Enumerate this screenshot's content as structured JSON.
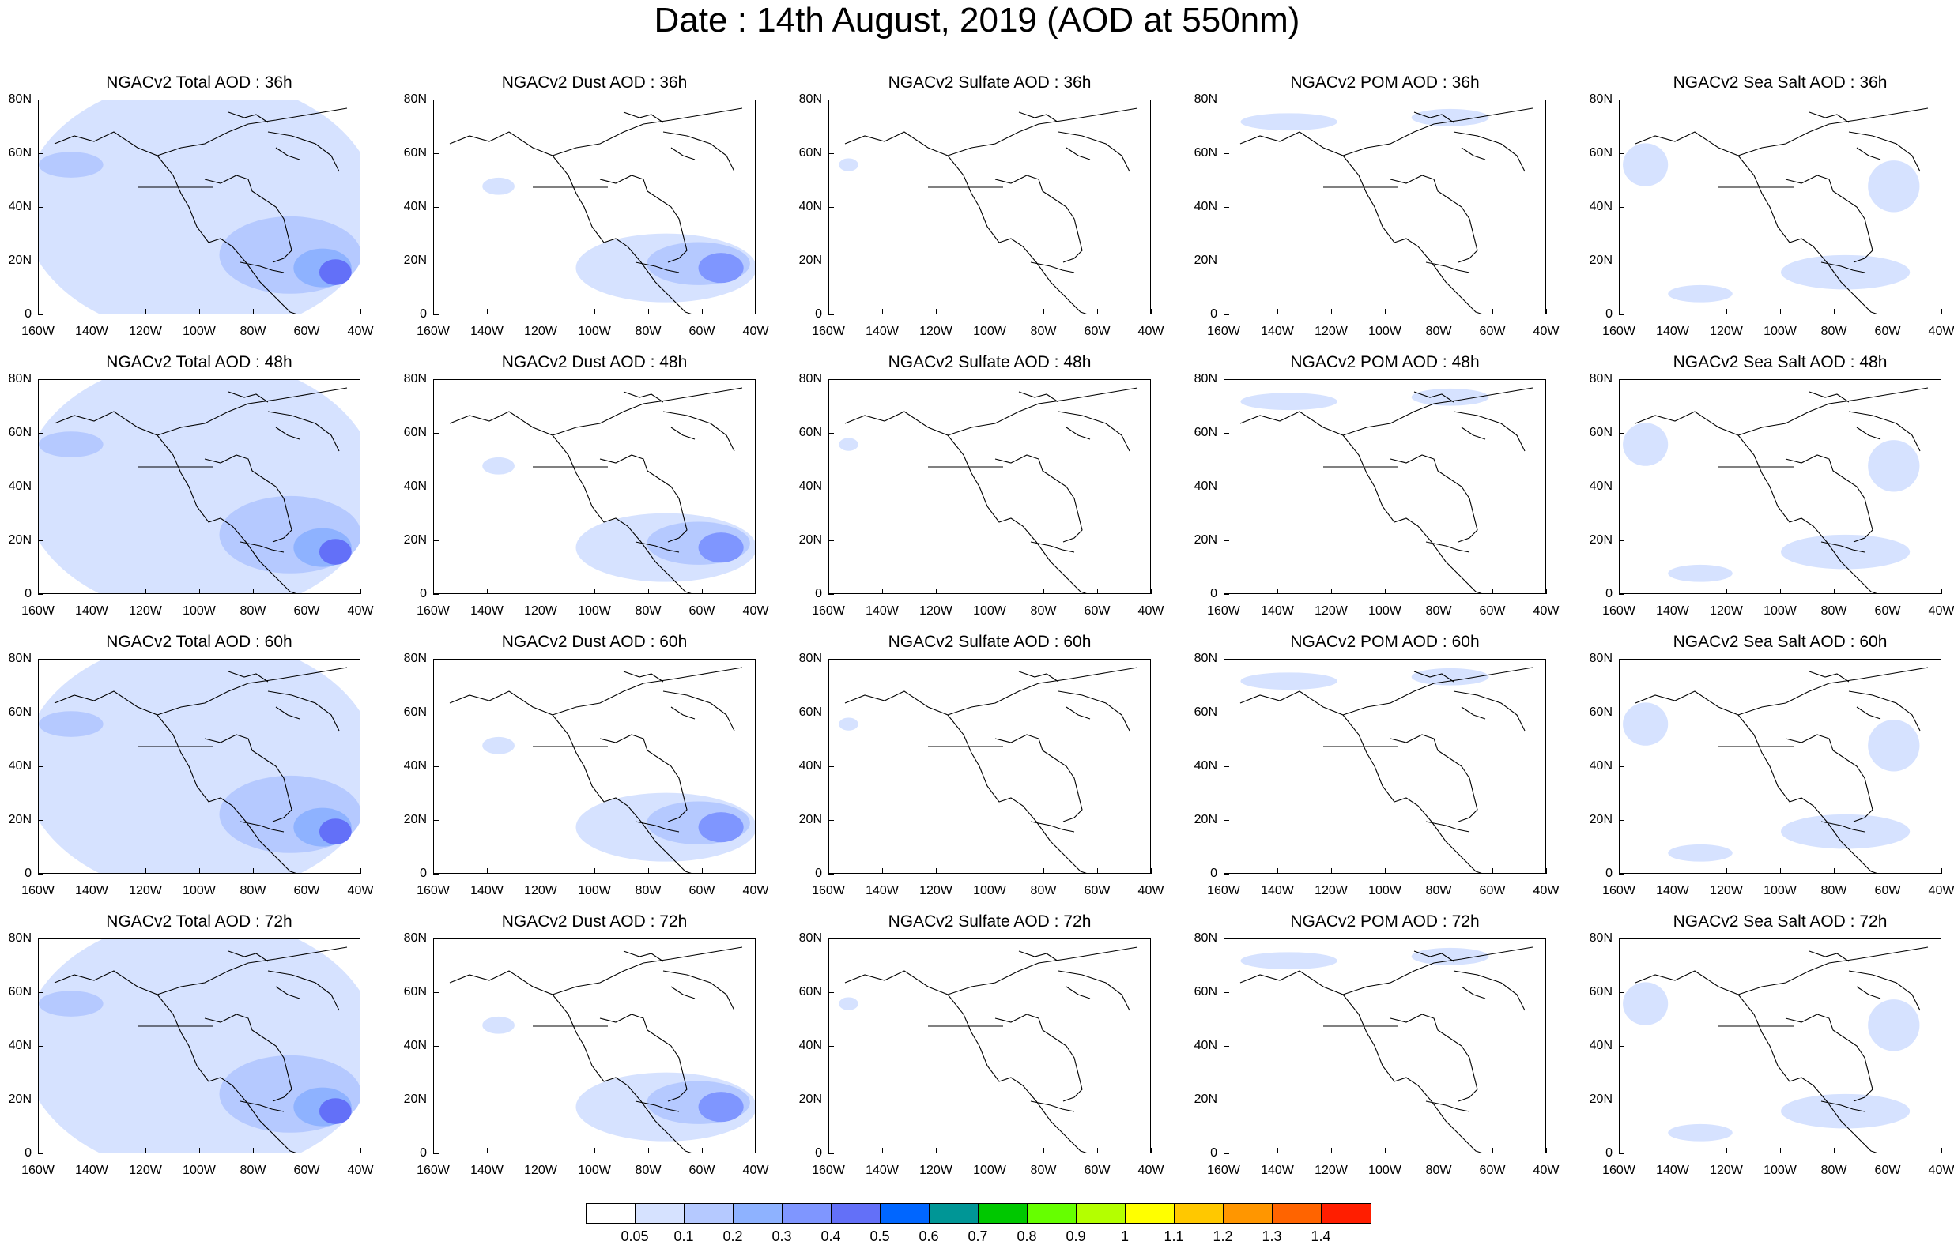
{
  "title": "Date : 14th August, 2019 (AOD at 550nm)",
  "y_axis_labels": [
    "80N",
    "60N",
    "40N",
    "20N",
    "0"
  ],
  "x_axis_labels": [
    "160W",
    "140W",
    "120W",
    "100W",
    "80W",
    "60W",
    "40W"
  ],
  "rows": [
    {
      "panels": [
        {
          "title": "NGACv2 Total AOD : 36h",
          "product": "total"
        },
        {
          "title": "NGACv2 Dust AOD : 36h",
          "product": "dust"
        },
        {
          "title": "NGACv2 Sulfate AOD : 36h",
          "product": "sulfate"
        },
        {
          "title": "NGACv2 POM AOD : 36h",
          "product": "pom"
        },
        {
          "title": "NGACv2 Sea Salt AOD : 36h",
          "product": "seasalt"
        }
      ]
    },
    {
      "panels": [
        {
          "title": "NGACv2 Total AOD : 48h",
          "product": "total"
        },
        {
          "title": "NGACv2 Dust AOD : 48h",
          "product": "dust"
        },
        {
          "title": "NGACv2 Sulfate AOD : 48h",
          "product": "sulfate"
        },
        {
          "title": "NGACv2 POM AOD : 48h",
          "product": "pom"
        },
        {
          "title": "NGACv2 Sea Salt AOD : 48h",
          "product": "seasalt"
        }
      ]
    },
    {
      "panels": [
        {
          "title": "NGACv2 Total AOD : 60h",
          "product": "total"
        },
        {
          "title": "NGACv2 Dust AOD : 60h",
          "product": "dust"
        },
        {
          "title": "NGACv2 Sulfate AOD : 60h",
          "product": "sulfate"
        },
        {
          "title": "NGACv2 POM AOD : 60h",
          "product": "pom"
        },
        {
          "title": "NGACv2 Sea Salt AOD : 60h",
          "product": "seasalt"
        }
      ]
    },
    {
      "panels": [
        {
          "title": "NGACv2 Total AOD : 72h",
          "product": "total"
        },
        {
          "title": "NGACv2 Dust AOD : 72h",
          "product": "dust"
        },
        {
          "title": "NGACv2 Sulfate AOD : 72h",
          "product": "sulfate"
        },
        {
          "title": "NGACv2 POM AOD : 72h",
          "product": "pom"
        },
        {
          "title": "NGACv2 Sea Salt  AOD : 72h",
          "product": "seasalt"
        }
      ]
    }
  ],
  "colorbar": {
    "labels": [
      "0.05",
      "0.1",
      "0.2",
      "0.3",
      "0.4",
      "0.5",
      "0.6",
      "0.7",
      "0.8",
      "0.9",
      "1",
      "1.1",
      "1.2",
      "1.3",
      "1.4"
    ],
    "colors": [
      "#ffffff",
      "#d6e2ff",
      "#b5c9ff",
      "#8eb2ff",
      "#7f96ff",
      "#6370f8",
      "#0066ff",
      "#009696",
      "#00c800",
      "#66ff00",
      "#b4ff00",
      "#ffff00",
      "#ffc800",
      "#ff9600",
      "#ff6400",
      "#ff1e00"
    ]
  }
}
